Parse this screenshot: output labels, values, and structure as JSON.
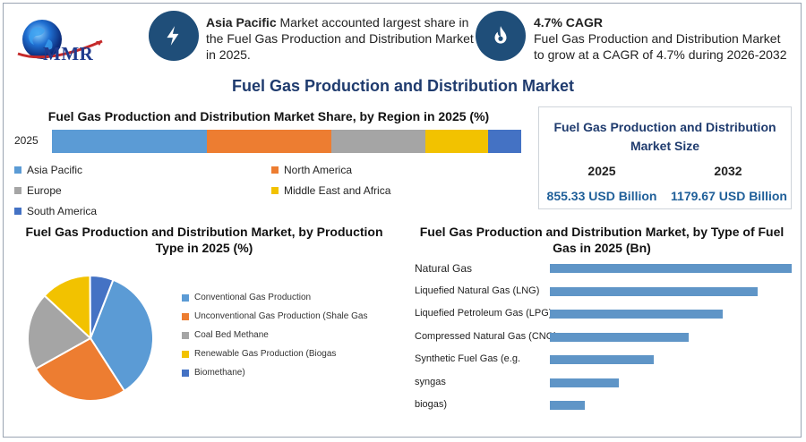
{
  "brand": {
    "logo_text": "MMR"
  },
  "highlights": [
    {
      "icon": "bolt-icon",
      "bold": "Asia Pacific",
      "text": " Market accounted largest share in the Fuel Gas Production and Distribution Market in 2025."
    },
    {
      "icon": "flame-icon",
      "bold": "4.7% CAGR",
      "text": "Fuel Gas Production and Distribution Market to grow at a CAGR of 4.7% during 2026-2032"
    }
  ],
  "main_title": "Fuel Gas Production and Distribution Market",
  "market_size": {
    "title": "Fuel Gas Production and Distribution Market Size",
    "year1": "2025",
    "value1": "855.33 USD Billion",
    "year2": "2032",
    "value2": "1179.67 USD Billion"
  },
  "colors": {
    "blue": "#5b9bd5",
    "orange": "#ed7d31",
    "gray": "#a5a5a5",
    "yellow": "#f2c200",
    "navy": "#4472c4",
    "bar": "#5f95c7"
  },
  "chart_data": [
    {
      "type": "bar",
      "orientation": "horizontal-stacked",
      "title": "Fuel Gas Production and Distribution Market Share, by Region in 2025 (%)",
      "categories": [
        "2025"
      ],
      "series": [
        {
          "name": "Asia Pacific",
          "values": [
            33
          ]
        },
        {
          "name": "North America",
          "values": [
            26.5
          ]
        },
        {
          "name": "Europe",
          "values": [
            20
          ]
        },
        {
          "name": "Middle East and Africa",
          "values": [
            13.5
          ]
        },
        {
          "name": "South America",
          "values": [
            7
          ]
        }
      ],
      "legend": "bottom"
    },
    {
      "type": "pie",
      "title": "Fuel Gas Production and Distribution Market, by Production Type in 2025 (%)",
      "labels": [
        "Conventional Gas Production",
        "Unconventional Gas Production (Shale Gas",
        "Coal Bed Methane",
        "Renewable Gas Production (Biogas",
        "Biomethane)"
      ],
      "values": [
        35,
        26,
        20,
        13,
        6
      ],
      "legend": "right"
    },
    {
      "type": "bar",
      "orientation": "horizontal",
      "title": "Fuel Gas Production and Distribution Market, by Type of Fuel Gas in 2025 (Bn)",
      "categories": [
        "Natural Gas",
        "Liquefied Natural Gas (LNG)",
        "Liquefied Petroleum Gas (LPG)",
        "Compressed Natural Gas (CNG)",
        "Synthetic Fuel Gas (e.g.",
        "syngas",
        "biogas)"
      ],
      "values": [
        270,
        232,
        193,
        155,
        116,
        77,
        39
      ]
    }
  ]
}
